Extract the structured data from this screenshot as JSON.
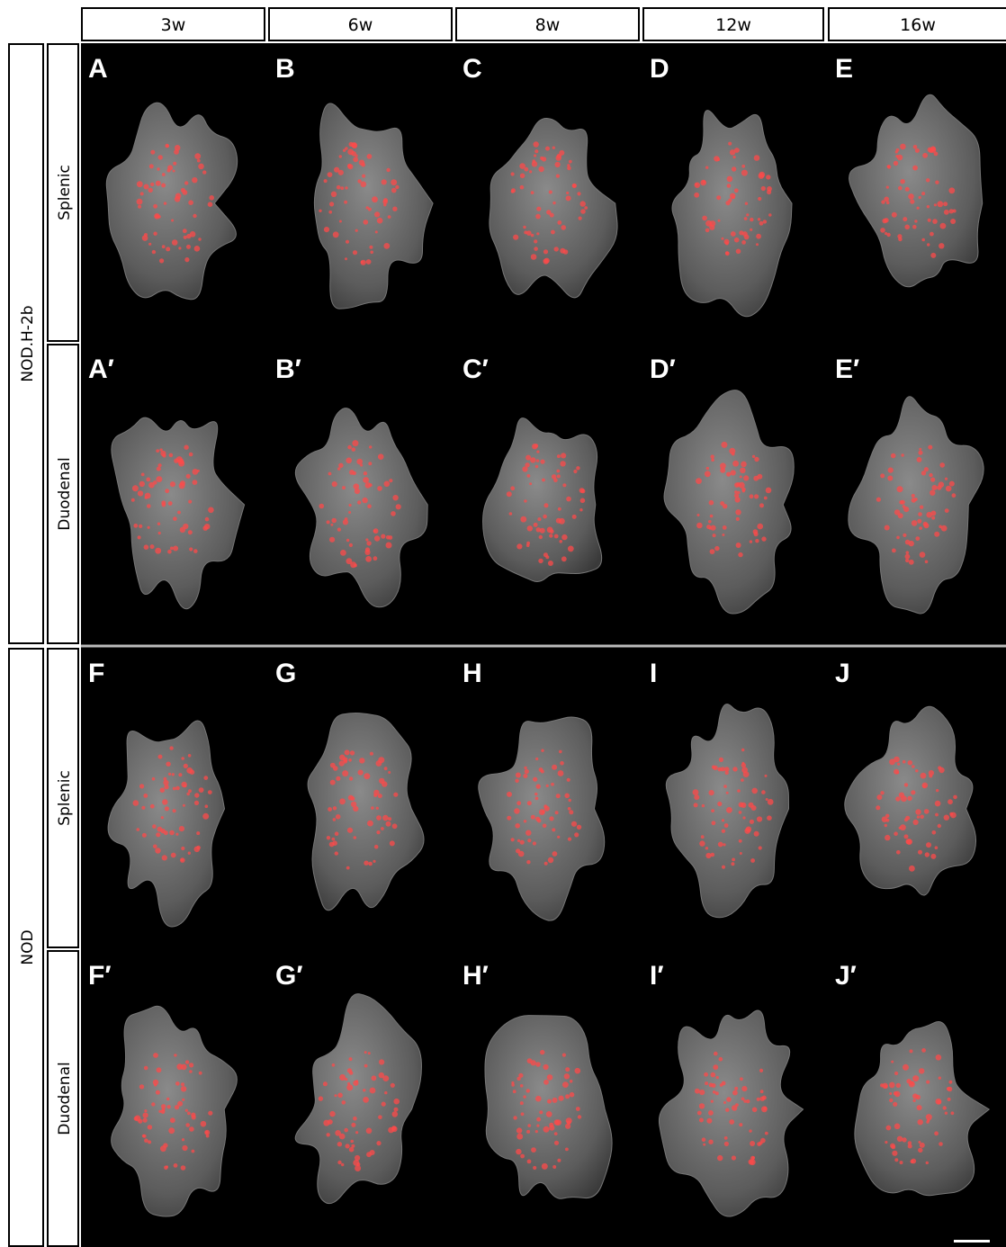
{
  "columns": [
    "3w",
    "6w",
    "8w",
    "12w",
    "16w"
  ],
  "groups": [
    {
      "label": "NOD.H-2b",
      "rows": [
        {
          "label": "Splenic",
          "panels": [
            "A",
            "B",
            "C",
            "D",
            "E"
          ]
        },
        {
          "label": "Duodenal",
          "panels": [
            "A′",
            "B′",
            "C′",
            "D′",
            "E′"
          ]
        }
      ]
    },
    {
      "label": "NOD",
      "rows": [
        {
          "label": "Splenic",
          "panels": [
            "F",
            "G",
            "H",
            "I",
            "J"
          ]
        },
        {
          "label": "Duodenal",
          "panels": [
            "F′",
            "G′",
            "H′",
            "I′",
            "J′"
          ]
        }
      ]
    }
  ]
}
